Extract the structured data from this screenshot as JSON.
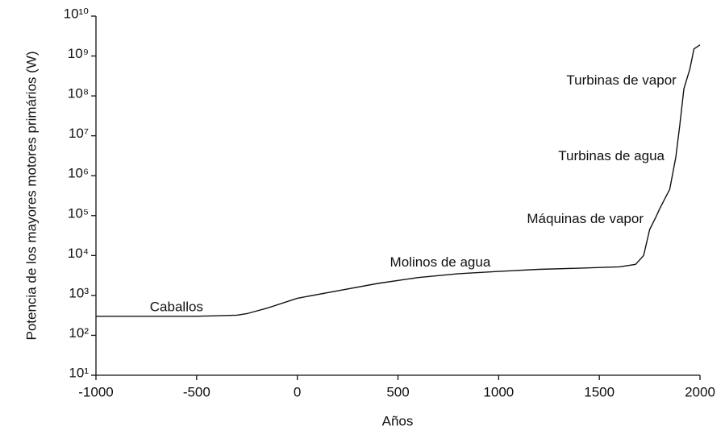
{
  "chart_data": {
    "type": "line",
    "xlabel": "Años",
    "ylabel": "Potencia de los mayores motores primários (W)",
    "log_y": true,
    "color": "#111111",
    "xlim": [
      -1000,
      2000
    ],
    "xticks": [
      -1000,
      -500,
      0,
      500,
      1000,
      1500,
      2000
    ],
    "ylim": [
      10,
      10000000000
    ],
    "yticks": [
      {
        "value": 10,
        "label": "10¹"
      },
      {
        "value": 100,
        "label": "10²"
      },
      {
        "value": 1000,
        "label": "10³"
      },
      {
        "value": 10000,
        "label": "10⁴"
      },
      {
        "value": 100000,
        "label": "10⁵"
      },
      {
        "value": 1000000,
        "label": "10⁶"
      },
      {
        "value": 10000000,
        "label": "10⁷"
      },
      {
        "value": 100000000,
        "label": "10⁸"
      },
      {
        "value": 1000000000,
        "label": "10⁹"
      },
      {
        "value": 10000000000,
        "label": "10¹⁰"
      }
    ],
    "x": [
      -1000,
      -500,
      -300,
      -250,
      -150,
      0,
      200,
      400,
      600,
      800,
      1000,
      1200,
      1400,
      1600,
      1680,
      1720,
      1750,
      1780,
      1800,
      1850,
      1880,
      1900,
      1920,
      1950,
      1970,
      2000
    ],
    "values": [
      300,
      300,
      320,
      350,
      480,
      850,
      1300,
      2000,
      2800,
      3500,
      4000,
      4500,
      4800,
      5200,
      6000,
      10000,
      45000,
      90000,
      150000,
      460000,
      2900000,
      19000000,
      150000000,
      480000000,
      1500000000,
      1900000000
    ],
    "annotations": [
      {
        "text": "Caballos",
        "x": -600,
        "y": 500
      },
      {
        "text": "Molinos de agua",
        "x": 710,
        "y": 6500
      },
      {
        "text": "Máquinas de vapor",
        "x": 1430,
        "y": 80000
      },
      {
        "text": "Turbinas de agua",
        "x": 1560,
        "y": 3000000
      },
      {
        "text": "Turbinas de vapor",
        "x": 1610,
        "y": 240000000
      }
    ]
  }
}
